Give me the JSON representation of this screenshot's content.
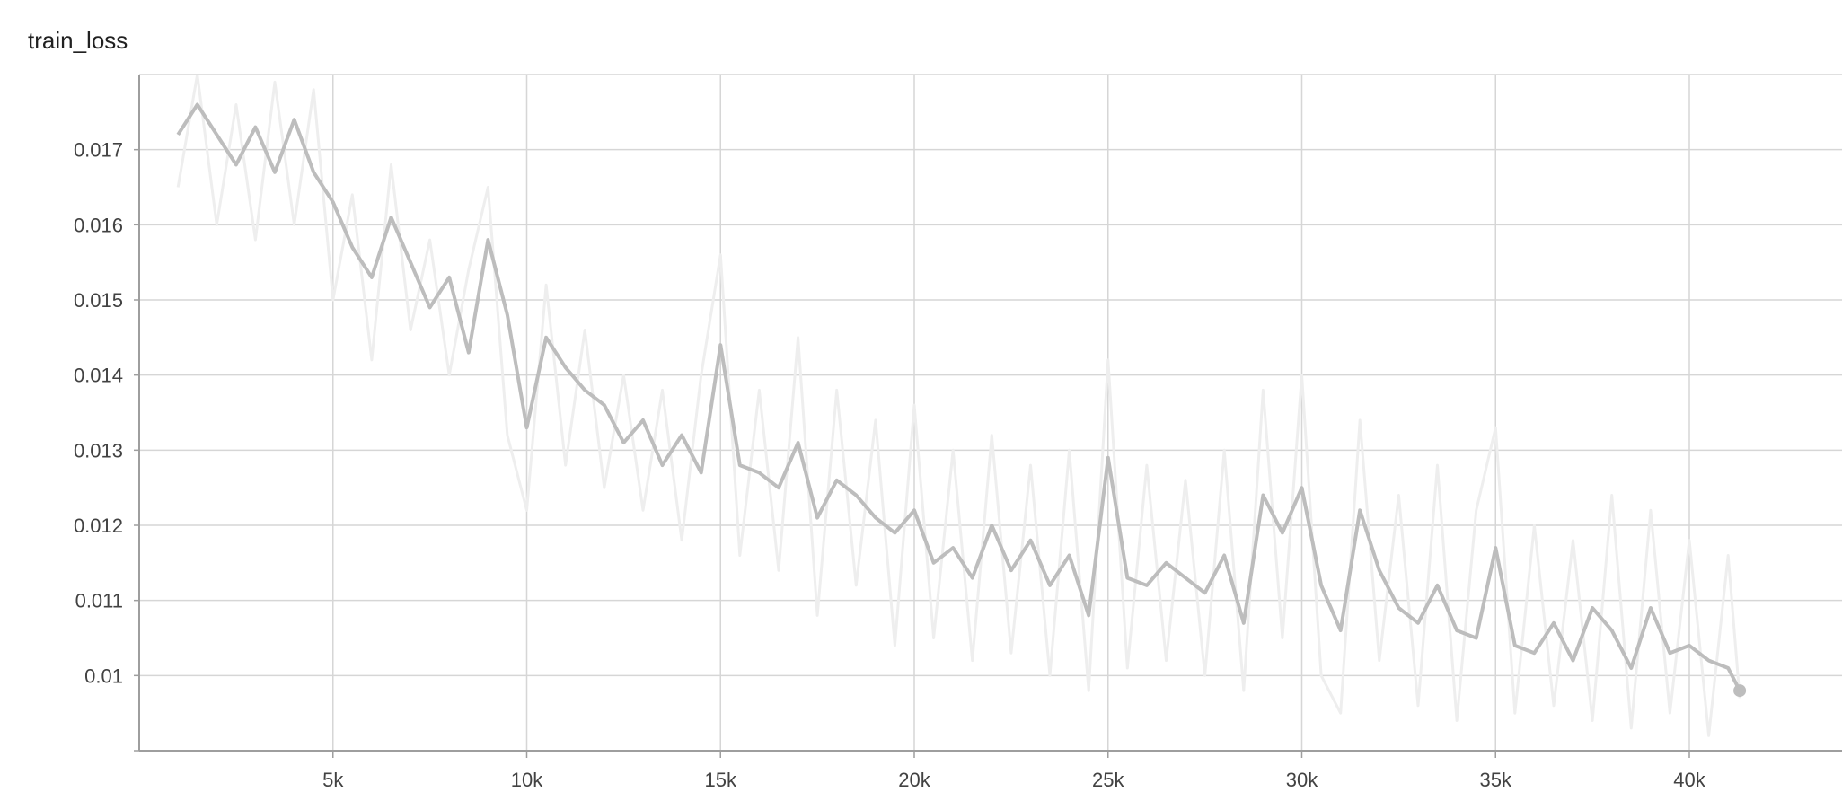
{
  "chart_data": {
    "type": "line",
    "title": "train_loss",
    "xlabel": "",
    "ylabel": "",
    "xlim": [
      0,
      44000
    ],
    "ylim": [
      0.009,
      0.018
    ],
    "x_ticks": [
      5000,
      10000,
      15000,
      20000,
      25000,
      30000,
      35000,
      40000
    ],
    "x_tick_labels": [
      "5k",
      "10k",
      "15k",
      "20k",
      "25k",
      "30k",
      "35k",
      "40k"
    ],
    "y_ticks": [
      0.01,
      0.011,
      0.012,
      0.013,
      0.014,
      0.015,
      0.016,
      0.017
    ],
    "y_tick_labels": [
      "0.01",
      "0.011",
      "0.012",
      "0.013",
      "0.014",
      "0.015",
      "0.016",
      "0.017"
    ],
    "grid": true,
    "series": [
      {
        "style": "smoothed",
        "color": "#bdbdbd",
        "x": [
          1000,
          1500,
          2000,
          2500,
          3000,
          3500,
          4000,
          4500,
          5000,
          5500,
          6000,
          6500,
          7000,
          7500,
          8000,
          8500,
          9000,
          9500,
          10000,
          10500,
          11000,
          11500,
          12000,
          12500,
          13000,
          13500,
          14000,
          14500,
          15000,
          15500,
          16000,
          16500,
          17000,
          17500,
          18000,
          18500,
          19000,
          19500,
          20000,
          20500,
          21000,
          21500,
          22000,
          22500,
          23000,
          23500,
          24000,
          24500,
          25000,
          25500,
          26000,
          26500,
          27000,
          27500,
          28000,
          28500,
          29000,
          29500,
          30000,
          30500,
          31000,
          31500,
          32000,
          32500,
          33000,
          33500,
          34000,
          34500,
          35000,
          35500,
          36000,
          36500,
          37000,
          37500,
          38000,
          38500,
          39000,
          39500,
          40000,
          40500,
          41000,
          41300
        ],
        "y": [
          0.0172,
          0.0176,
          0.0172,
          0.0168,
          0.0173,
          0.0167,
          0.0174,
          0.0167,
          0.0163,
          0.0157,
          0.0153,
          0.0161,
          0.0155,
          0.0149,
          0.0153,
          0.0143,
          0.0158,
          0.0148,
          0.0133,
          0.0145,
          0.0141,
          0.0138,
          0.0136,
          0.0131,
          0.0134,
          0.0128,
          0.0132,
          0.0127,
          0.0144,
          0.0128,
          0.0127,
          0.0125,
          0.0131,
          0.0121,
          0.0126,
          0.0124,
          0.0121,
          0.0119,
          0.0122,
          0.0115,
          0.0117,
          0.0113,
          0.012,
          0.0114,
          0.0118,
          0.0112,
          0.0116,
          0.0108,
          0.0129,
          0.0113,
          0.0112,
          0.0115,
          0.0113,
          0.0111,
          0.0116,
          0.0107,
          0.0124,
          0.0119,
          0.0125,
          0.0112,
          0.0106,
          0.0122,
          0.0114,
          0.0109,
          0.0107,
          0.0112,
          0.0106,
          0.0105,
          0.0117,
          0.0104,
          0.0103,
          0.0107,
          0.0102,
          0.0109,
          0.0106,
          0.0101,
          0.0109,
          0.0103,
          0.0104,
          0.0102,
          0.0101,
          0.0098
        ]
      },
      {
        "style": "raw",
        "color": "#eeeeee",
        "x": [
          1000,
          1500,
          2000,
          2500,
          3000,
          3500,
          4000,
          4500,
          5000,
          5500,
          6000,
          6500,
          7000,
          7500,
          8000,
          8500,
          9000,
          9500,
          10000,
          10500,
          11000,
          11500,
          12000,
          12500,
          13000,
          13500,
          14000,
          14500,
          15000,
          15500,
          16000,
          16500,
          17000,
          17500,
          18000,
          18500,
          19000,
          19500,
          20000,
          20500,
          21000,
          21500,
          22000,
          22500,
          23000,
          23500,
          24000,
          24500,
          25000,
          25500,
          26000,
          26500,
          27000,
          27500,
          28000,
          28500,
          29000,
          29500,
          30000,
          30500,
          31000,
          31500,
          32000,
          32500,
          33000,
          33500,
          34000,
          34500,
          35000,
          35500,
          36000,
          36500,
          37000,
          37500,
          38000,
          38500,
          39000,
          39500,
          40000,
          40500,
          41000,
          41300
        ],
        "y": [
          0.0165,
          0.018,
          0.016,
          0.0176,
          0.0158,
          0.0179,
          0.016,
          0.0178,
          0.015,
          0.0164,
          0.0142,
          0.0168,
          0.0146,
          0.0158,
          0.014,
          0.0154,
          0.0165,
          0.0132,
          0.0122,
          0.0152,
          0.0128,
          0.0146,
          0.0125,
          0.014,
          0.0122,
          0.0138,
          0.0118,
          0.014,
          0.0156,
          0.0116,
          0.0138,
          0.0114,
          0.0145,
          0.0108,
          0.0138,
          0.0112,
          0.0134,
          0.0104,
          0.0136,
          0.0105,
          0.013,
          0.0102,
          0.0132,
          0.0103,
          0.0128,
          0.01,
          0.013,
          0.0098,
          0.0142,
          0.0101,
          0.0128,
          0.0102,
          0.0126,
          0.01,
          0.013,
          0.0098,
          0.0138,
          0.0105,
          0.014,
          0.01,
          0.0095,
          0.0134,
          0.0102,
          0.0124,
          0.0096,
          0.0128,
          0.0094,
          0.0122,
          0.0133,
          0.0095,
          0.012,
          0.0096,
          0.0118,
          0.0094,
          0.0124,
          0.0093,
          0.0122,
          0.0095,
          0.0118,
          0.0092,
          0.0116,
          0.0097
        ]
      }
    ]
  }
}
